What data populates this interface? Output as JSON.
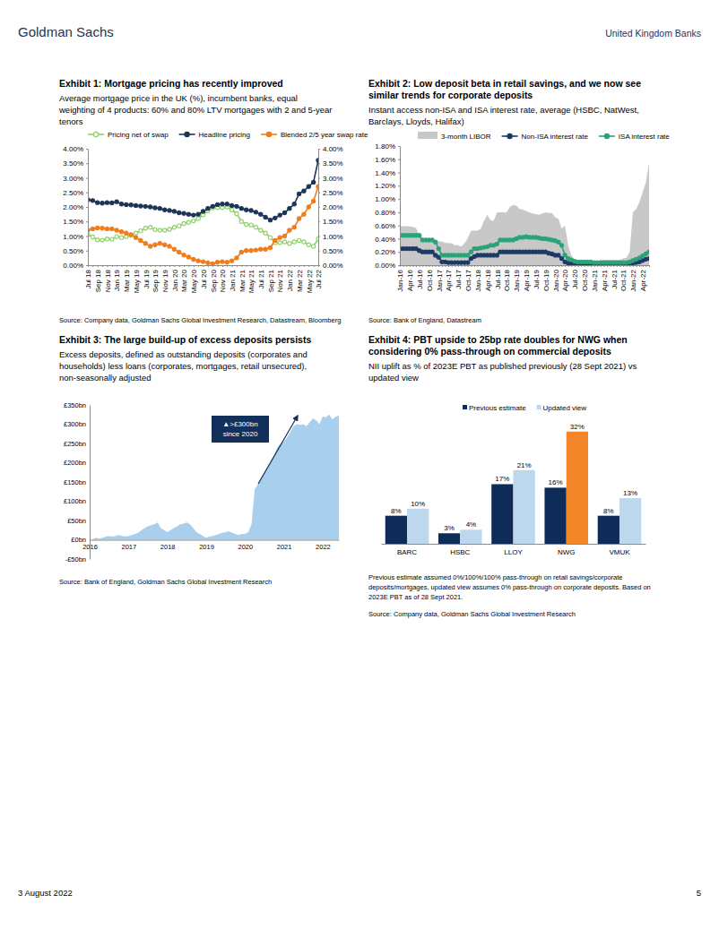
{
  "page": {
    "header_left": "Goldman Sachs",
    "header_right": "United Kingdom Banks",
    "footer_left": "3 August 2022",
    "footer_right": "5"
  },
  "chart_data": [
    {
      "type": "line",
      "title": [
        "Exhibit 1: Mortgage pricing has recently improved"
      ],
      "subtitle": [
        "Average mortgage price in the UK (%), incumbent banks, equal",
        "weighting of 4 products: 60% and 80% LTV mortgages with 2 and 5-year",
        "tenors"
      ],
      "source": "Source: Company data, Goldman Sachs Global Investment Research, Datastream, Bloomberg",
      "categories": [
        "Jul 18",
        null,
        "Sep 18",
        null,
        "Nov 18",
        null,
        "Jan 19",
        null,
        "Mar 19",
        null,
        "May 19",
        null,
        "Jul 19",
        null,
        "Sep 19",
        null,
        "Nov 19",
        null,
        "Jan 20",
        null,
        "Mar 20",
        null,
        "May 20",
        null,
        "Jul 20",
        null,
        "Sep 20",
        null,
        "Nov 20",
        null,
        "Jan 21",
        null,
        "Mar 21",
        null,
        "May 21",
        null,
        "Jul 21",
        null,
        "Sep 21",
        null,
        "Nov 21",
        null,
        "Jan 22",
        null,
        "Mar 22",
        null,
        "May 22",
        null,
        "Jul 22"
      ],
      "series": [
        {
          "name": "Pricing net of swap",
          "color": "#8fd16a",
          "marker": "open-circle",
          "values": [
            1.05,
            0.97,
            0.87,
            0.86,
            0.9,
            0.89,
            0.98,
            0.95,
            0.98,
            1.02,
            1.1,
            1.18,
            1.27,
            1.3,
            1.22,
            1.2,
            1.2,
            1.23,
            1.3,
            1.35,
            1.43,
            1.47,
            1.52,
            1.6,
            1.73,
            1.87,
            1.97,
            1.98,
            1.98,
            2.0,
            1.9,
            1.77,
            1.5,
            1.4,
            1.38,
            1.3,
            1.2,
            1.1,
            0.95,
            0.77,
            0.77,
            0.8,
            0.75,
            0.8,
            0.85,
            0.8,
            0.7,
            0.65,
            0.9
          ]
        },
        {
          "name": "Headline pricing",
          "color": "#1c3557",
          "marker": "circle",
          "values": [
            2.25,
            2.22,
            2.15,
            2.13,
            2.15,
            2.14,
            2.18,
            2.1,
            2.08,
            2.07,
            2.05,
            2.03,
            2.02,
            2.0,
            1.97,
            1.95,
            1.9,
            1.88,
            1.85,
            1.8,
            1.78,
            1.75,
            1.72,
            1.75,
            1.85,
            1.95,
            2.02,
            2.08,
            2.1,
            2.1,
            2.05,
            2.02,
            1.95,
            1.9,
            1.88,
            1.82,
            1.75,
            1.65,
            1.55,
            1.62,
            1.72,
            1.8,
            1.95,
            2.1,
            2.45,
            2.55,
            2.7,
            2.85,
            3.6
          ]
        },
        {
          "name": "Blended 2/5 year swap rate",
          "color": "#f07d1a",
          "marker": "circle",
          "axis": "y2",
          "values": [
            1.2,
            1.25,
            1.28,
            1.27,
            1.25,
            1.25,
            1.2,
            1.15,
            1.1,
            1.05,
            0.95,
            0.85,
            0.75,
            0.65,
            0.7,
            0.75,
            0.7,
            0.65,
            0.55,
            0.45,
            0.35,
            0.28,
            0.2,
            0.15,
            0.12,
            0.08,
            0.05,
            0.1,
            0.12,
            0.1,
            0.15,
            0.25,
            0.45,
            0.5,
            0.5,
            0.52,
            0.55,
            0.55,
            0.6,
            0.85,
            0.95,
            1.0,
            1.2,
            1.3,
            1.6,
            1.75,
            2.0,
            2.2,
            2.7
          ]
        }
      ],
      "ylim": [
        0,
        4
      ],
      "yticks": [
        {
          "value": 0,
          "label": "0.00%"
        },
        {
          "value": 0.5,
          "label": "0.50%"
        },
        {
          "value": 1,
          "label": "1.00%"
        },
        {
          "value": 1.5,
          "label": "1.50%"
        },
        {
          "value": 2,
          "label": "2.00%"
        },
        {
          "value": 2.5,
          "label": "2.50%"
        },
        {
          "value": 3,
          "label": "3.00%"
        },
        {
          "value": 3.5,
          "label": "3.50%"
        },
        {
          "value": 4,
          "label": "4.00%"
        }
      ],
      "y2lim": [
        0,
        4
      ],
      "y2ticks": [
        {
          "value": 0,
          "label": "0.00%"
        },
        {
          "value": 0.5,
          "label": "0.50%"
        },
        {
          "value": 1,
          "label": "1.00%"
        },
        {
          "value": 1.5,
          "label": "1.50%"
        },
        {
          "value": 2,
          "label": "2.00%"
        },
        {
          "value": 2.5,
          "label": "2.50%"
        },
        {
          "value": 3,
          "label": "3.00%"
        },
        {
          "value": 3.5,
          "label": "3.50%"
        },
        {
          "value": 4,
          "label": "4.00%"
        }
      ],
      "legend": "top",
      "grid": false
    },
    {
      "type": "line",
      "title": [
        "Exhibit 2: Low deposit beta in retail savings, and we now see",
        "similar trends for corporate deposits"
      ],
      "subtitle": [
        "Instant access non-ISA and ISA interest rate, average (HSBC, NatWest,",
        "Barclays, Lloyds, Halifax)"
      ],
      "source": "Source: Bank of England, Datastream",
      "categories": [
        "Jan-16",
        null,
        null,
        "Apr-16",
        null,
        null,
        "Jul-16",
        null,
        null,
        "Oct-16",
        null,
        null,
        "Jan-17",
        null,
        null,
        "Apr-17",
        null,
        null,
        "Jul-17",
        null,
        null,
        "Oct-17",
        null,
        null,
        "Jan-18",
        null,
        null,
        "Apr-18",
        null,
        null,
        "Jul-18",
        null,
        null,
        "Oct-18",
        null,
        null,
        "Jan-19",
        null,
        null,
        "Apr-19",
        null,
        null,
        "Jul-19",
        null,
        null,
        "Oct-19",
        null,
        null,
        "Jan-20",
        null,
        null,
        "Apr-20",
        null,
        null,
        "Jul-20",
        null,
        null,
        "Oct-20",
        null,
        null,
        "Jan-21",
        null,
        null,
        "Apr-21",
        null,
        null,
        "Jul-21",
        null,
        null,
        "Oct-21",
        null,
        null,
        "Jan-22",
        null,
        null,
        "Apr-22",
        null,
        null
      ],
      "series": [
        {
          "name": "3-month LIBOR",
          "color": "#c8c8c8",
          "type": "area",
          "values": [
            0.59,
            0.59,
            0.59,
            0.59,
            0.58,
            0.56,
            0.45,
            0.38,
            0.38,
            0.4,
            0.4,
            0.37,
            0.36,
            0.36,
            0.34,
            0.33,
            0.33,
            0.3,
            0.3,
            0.28,
            0.33,
            0.41,
            0.52,
            0.52,
            0.52,
            0.55,
            0.67,
            0.76,
            0.68,
            0.67,
            0.8,
            0.8,
            0.8,
            0.8,
            0.88,
            0.91,
            0.9,
            0.85,
            0.84,
            0.82,
            0.8,
            0.78,
            0.77,
            0.76,
            0.78,
            0.8,
            0.79,
            0.79,
            0.72,
            0.7,
            0.55,
            0.6,
            0.3,
            0.15,
            0.07,
            0.05,
            0.05,
            0.04,
            0.04,
            0.03,
            0.03,
            0.04,
            0.08,
            0.08,
            0.08,
            0.08,
            0.08,
            0.08,
            0.08,
            0.1,
            0.11,
            0.2,
            0.8,
            0.85,
            0.95,
            1.1,
            1.25,
            1.55
          ]
        },
        {
          "name": "Non-ISA interest rate",
          "color": "#1c3a66",
          "type": "line",
          "marker": "circle",
          "values": [
            0.25,
            0.25,
            0.25,
            0.25,
            0.25,
            0.25,
            0.22,
            0.2,
            0.2,
            0.2,
            0.2,
            0.15,
            0.12,
            0.05,
            0.05,
            0.04,
            0.04,
            0.04,
            0.04,
            0.04,
            0.04,
            0.04,
            0.1,
            0.13,
            0.15,
            0.15,
            0.15,
            0.15,
            0.15,
            0.15,
            0.15,
            0.2,
            0.2,
            0.2,
            0.2,
            0.2,
            0.2,
            0.2,
            0.2,
            0.2,
            0.2,
            0.2,
            0.2,
            0.2,
            0.2,
            0.2,
            0.18,
            0.17,
            0.15,
            0.15,
            0.1,
            0.05,
            0.03,
            0.03,
            0.02,
            0.02,
            0.02,
            0.02,
            0.02,
            0.02,
            0.01,
            0.01,
            0.01,
            0.01,
            0.01,
            0.01,
            0.01,
            0.01,
            0.01,
            0.01,
            0.01,
            0.02,
            0.03,
            0.04,
            0.05,
            0.07,
            0.09,
            0.1
          ]
        },
        {
          "name": "ISA interest rate",
          "color": "#2aa37a",
          "type": "line",
          "marker": "circle",
          "values": [
            0.45,
            0.45,
            0.45,
            0.45,
            0.45,
            0.45,
            0.45,
            0.38,
            0.38,
            0.38,
            0.38,
            0.35,
            0.25,
            0.15,
            0.15,
            0.15,
            0.15,
            0.15,
            0.15,
            0.15,
            0.15,
            0.15,
            0.2,
            0.25,
            0.25,
            0.26,
            0.27,
            0.28,
            0.3,
            0.3,
            0.32,
            0.38,
            0.38,
            0.38,
            0.38,
            0.38,
            0.4,
            0.42,
            0.42,
            0.43,
            0.42,
            0.42,
            0.42,
            0.41,
            0.4,
            0.4,
            0.39,
            0.38,
            0.37,
            0.35,
            0.3,
            0.15,
            0.1,
            0.08,
            0.06,
            0.05,
            0.05,
            0.05,
            0.05,
            0.05,
            0.04,
            0.04,
            0.04,
            0.04,
            0.04,
            0.04,
            0.04,
            0.04,
            0.04,
            0.04,
            0.04,
            0.05,
            0.07,
            0.09,
            0.11,
            0.14,
            0.17,
            0.2
          ]
        }
      ],
      "ylim": [
        0,
        1.8
      ],
      "yticks": [
        {
          "value": 0,
          "label": "0.00%"
        },
        {
          "value": 0.2,
          "label": "0.20%"
        },
        {
          "value": 0.4,
          "label": "0.40%"
        },
        {
          "value": 0.6,
          "label": "0.60%"
        },
        {
          "value": 0.8,
          "label": "0.80%"
        },
        {
          "value": 1,
          "label": "1.00%"
        },
        {
          "value": 1.2,
          "label": "1.20%"
        },
        {
          "value": 1.4,
          "label": "1.40%"
        },
        {
          "value": 1.6,
          "label": "1.60%"
        },
        {
          "value": 1.8,
          "label": "1.80%"
        }
      ],
      "legend": "top",
      "grid": false
    },
    {
      "type": "area",
      "title": [
        "Exhibit 3: The large build-up of excess deposits persists"
      ],
      "subtitle": [
        "Excess deposits, defined as outstanding deposits (corporates and",
        "households) less loans (corporates, mortgages, retail unsecured),",
        "non-seasonally adjusted"
      ],
      "source": "Source: Bank of England, Goldman Sachs Global Investment Research",
      "annotation": [
        "▲>£300bn",
        "since 2020"
      ],
      "categories": [
        "2016",
        null,
        null,
        null,
        null,
        null,
        null,
        null,
        null,
        null,
        null,
        null,
        "2017",
        null,
        null,
        null,
        null,
        null,
        null,
        null,
        null,
        null,
        null,
        null,
        "2018",
        null,
        null,
        null,
        null,
        null,
        null,
        null,
        null,
        null,
        null,
        null,
        "2019",
        null,
        null,
        null,
        null,
        null,
        null,
        null,
        null,
        null,
        null,
        null,
        "2020",
        null,
        null,
        null,
        null,
        null,
        null,
        null,
        null,
        null,
        null,
        null,
        "2021",
        null,
        null,
        null,
        null,
        null,
        null,
        null,
        null,
        null,
        null,
        null,
        "2022",
        null,
        null,
        null,
        null,
        null
      ],
      "values": [
        0,
        2,
        5,
        3,
        5,
        8,
        10,
        8,
        10,
        12,
        10,
        8,
        10,
        12,
        15,
        18,
        25,
        30,
        35,
        38,
        40,
        45,
        30,
        25,
        20,
        25,
        30,
        35,
        40,
        42,
        45,
        40,
        30,
        20,
        15,
        10,
        5,
        8,
        10,
        12,
        15,
        18,
        20,
        22,
        18,
        15,
        12,
        15,
        15,
        20,
        40,
        130,
        145,
        160,
        175,
        190,
        205,
        220,
        240,
        250,
        255,
        265,
        280,
        295,
        300,
        298,
        300,
        295,
        305,
        315,
        310,
        300,
        320,
        318,
        325,
        312,
        320,
        322
      ],
      "color": "#a8cfee",
      "ylim": [
        -50,
        350
      ],
      "yticks": [
        {
          "value": -50,
          "label": "-£50bn"
        },
        {
          "value": 0,
          "label": "£0bn"
        },
        {
          "value": 50,
          "label": "£50bn"
        },
        {
          "value": 100,
          "label": "£100bn"
        },
        {
          "value": 150,
          "label": "£150bn"
        },
        {
          "value": 200,
          "label": "£200bn"
        },
        {
          "value": 250,
          "label": "£250bn"
        },
        {
          "value": 300,
          "label": "£300bn"
        },
        {
          "value": 350,
          "label": "£350bn"
        }
      ],
      "grid": false
    },
    {
      "type": "bar",
      "title": [
        "Exhibit 4: PBT upside to 25bp rate doubles for NWG when",
        "considering 0% pass-through on commercial deposits"
      ],
      "subtitle": [
        "NII uplift as % of 2023E PBT as published previously (28 Sept 2021) vs",
        "updated view"
      ],
      "notes": [
        "Previous estimate assumed 0%/100%/100% pass-through on retail savings/corporate",
        "deposits/mortgages, updated view assumes 0% pass-through on corporate deposits. Based on",
        "2023E PBT as of 28 Sept 2021."
      ],
      "source": "Source: Company data, Goldman Sachs Global Investment Research",
      "categories": [
        "BARC",
        "HSBC",
        "LLOY",
        "NWG",
        "VMUK"
      ],
      "series": [
        {
          "name": "Previous estimate",
          "color": "#0f2c59",
          "values": [
            8,
            3,
            17,
            16,
            8
          ],
          "value_labels": [
            "8%",
            "3%",
            "17%",
            "16%",
            "8%"
          ]
        },
        {
          "name": "Updated view",
          "color": "#bdd7ee",
          "colors": [
            "#bdd7ee",
            "#bdd7ee",
            "#bdd7ee",
            "#f4862a",
            "#bdd7ee"
          ],
          "values": [
            10,
            4,
            21,
            32,
            13
          ],
          "value_labels": [
            "10%",
            "4%",
            "21%",
            "32%",
            "13%"
          ]
        }
      ],
      "ylim": [
        0,
        35
      ],
      "data_labels": true,
      "legend": "top",
      "tick_labels": "x",
      "grid": false
    }
  ]
}
